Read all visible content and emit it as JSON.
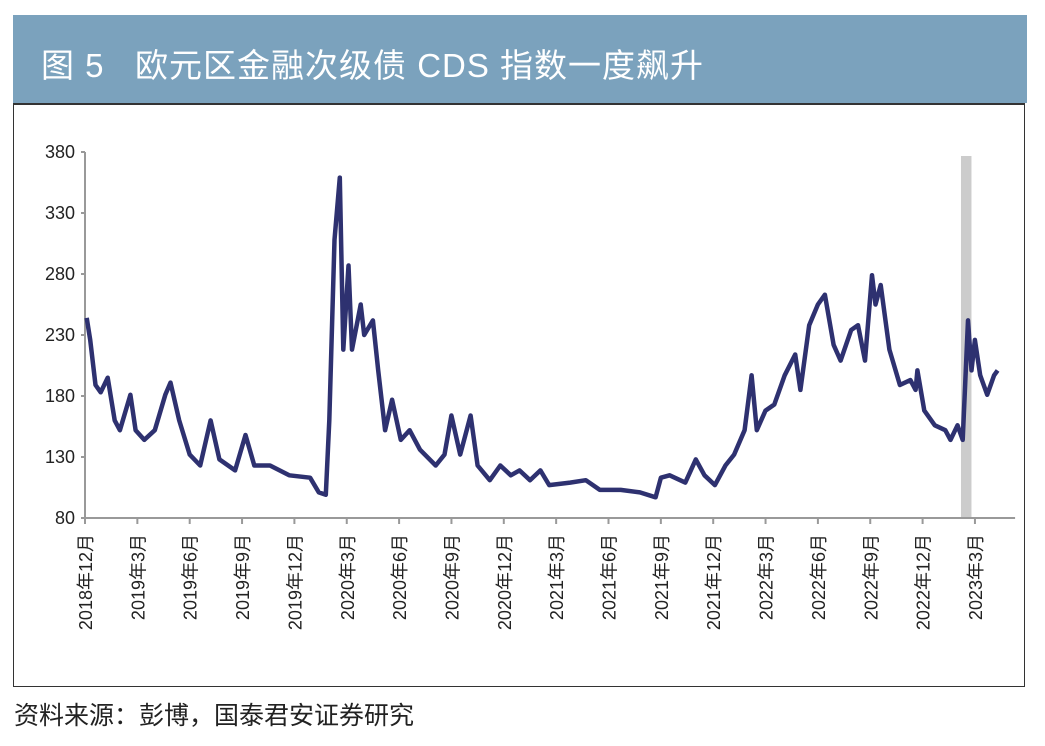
{
  "header": {
    "title": "图 5   欧元区金融次级债 CDS 指数一度飙升"
  },
  "source": "资料来源：彭博，国泰君安证券研究",
  "chart_data": {
    "type": "line",
    "title": "欧元区金融次级债 CDS 指数一度飙升",
    "x_unit": "months since 2018-12",
    "ylim": [
      80,
      380
    ],
    "yticks": [
      80,
      130,
      180,
      230,
      280,
      330,
      380
    ],
    "xticks": [
      "2018年12月",
      "2019年3月",
      "2019年6月",
      "2019年9月",
      "2019年12月",
      "2020年3月",
      "2020年6月",
      "2020年9月",
      "2020年12月",
      "2021年3月",
      "2021年6月",
      "2021年9月",
      "2021年12月",
      "2022年3月",
      "2022年6月",
      "2022年9月",
      "2022年12月",
      "2023年3月"
    ],
    "xlim": [
      0,
      53.3
    ],
    "shaded_band": [
      50.2,
      50.8
    ],
    "line_color": "#2e3170",
    "band_color": "#cccccc",
    "series": [
      {
        "name": "CDS",
        "points": [
          [
            0.1,
            244
          ],
          [
            0.3,
            226
          ],
          [
            0.6,
            189
          ],
          [
            0.9,
            183
          ],
          [
            1.3,
            195
          ],
          [
            1.7,
            160
          ],
          [
            2.0,
            152
          ],
          [
            2.6,
            181
          ],
          [
            2.9,
            152
          ],
          [
            3.4,
            144
          ],
          [
            4.0,
            152
          ],
          [
            4.6,
            181
          ],
          [
            4.9,
            191
          ],
          [
            5.4,
            160
          ],
          [
            6.0,
            132
          ],
          [
            6.6,
            123
          ],
          [
            7.2,
            160
          ],
          [
            7.7,
            128
          ],
          [
            8.6,
            119
          ],
          [
            9.2,
            148
          ],
          [
            9.7,
            123
          ],
          [
            10.6,
            123
          ],
          [
            11.7,
            115
          ],
          [
            12.9,
            113
          ],
          [
            13.4,
            101
          ],
          [
            13.8,
            99
          ],
          [
            14.0,
            160
          ],
          [
            14.3,
            308
          ],
          [
            14.6,
            359
          ],
          [
            14.8,
            218
          ],
          [
            15.1,
            287
          ],
          [
            15.3,
            218
          ],
          [
            15.8,
            255
          ],
          [
            16.0,
            230
          ],
          [
            16.5,
            242
          ],
          [
            16.8,
            201
          ],
          [
            17.2,
            152
          ],
          [
            17.6,
            177
          ],
          [
            18.1,
            144
          ],
          [
            18.6,
            152
          ],
          [
            19.2,
            136
          ],
          [
            20.1,
            123
          ],
          [
            20.6,
            132
          ],
          [
            21.0,
            164
          ],
          [
            21.5,
            132
          ],
          [
            22.1,
            164
          ],
          [
            22.5,
            123
          ],
          [
            23.2,
            111
          ],
          [
            23.8,
            123
          ],
          [
            24.4,
            115
          ],
          [
            24.9,
            119
          ],
          [
            25.5,
            111
          ],
          [
            26.1,
            119
          ],
          [
            26.6,
            107
          ],
          [
            27.8,
            109
          ],
          [
            28.7,
            111
          ],
          [
            29.5,
            103
          ],
          [
            30.7,
            103
          ],
          [
            31.8,
            101
          ],
          [
            32.7,
            97
          ],
          [
            33.0,
            113
          ],
          [
            33.5,
            115
          ],
          [
            34.4,
            109
          ],
          [
            35.0,
            128
          ],
          [
            35.5,
            115
          ],
          [
            36.1,
            107
          ],
          [
            36.7,
            123
          ],
          [
            37.2,
            132
          ],
          [
            37.8,
            152
          ],
          [
            38.2,
            197
          ],
          [
            38.5,
            152
          ],
          [
            39.0,
            168
          ],
          [
            39.5,
            173
          ],
          [
            40.1,
            197
          ],
          [
            40.7,
            214
          ],
          [
            41.0,
            185
          ],
          [
            41.5,
            238
          ],
          [
            42.0,
            255
          ],
          [
            42.4,
            263
          ],
          [
            42.9,
            222
          ],
          [
            43.3,
            209
          ],
          [
            43.9,
            234
          ],
          [
            44.3,
            238
          ],
          [
            44.7,
            209
          ],
          [
            45.1,
            279
          ],
          [
            45.3,
            255
          ],
          [
            45.6,
            271
          ],
          [
            46.1,
            218
          ],
          [
            46.7,
            189
          ],
          [
            47.3,
            193
          ],
          [
            47.6,
            185
          ],
          [
            47.7,
            201
          ],
          [
            48.1,
            168
          ],
          [
            48.7,
            156
          ],
          [
            49.3,
            152
          ],
          [
            49.6,
            144
          ],
          [
            50.0,
            156
          ],
          [
            50.3,
            144
          ],
          [
            50.6,
            242
          ],
          [
            50.8,
            201
          ],
          [
            51.0,
            226
          ],
          [
            51.3,
            197
          ],
          [
            51.7,
            181
          ],
          [
            52.1,
            197
          ],
          [
            52.3,
            201
          ]
        ]
      }
    ]
  }
}
